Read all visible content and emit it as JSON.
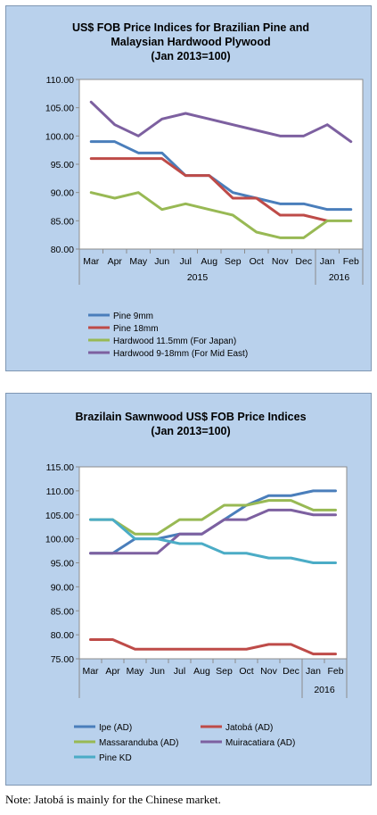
{
  "chart_data": [
    {
      "type": "line",
      "title_lines": [
        "US$ FOB Price Indices for Brazilian Pine and",
        "Malaysian Hardwood Plywood",
        "(Jan 2013=100)"
      ],
      "categories": [
        "Mar",
        "Apr",
        "May",
        "Jun",
        "Jul",
        "Aug",
        "Sep",
        "Oct",
        "Nov",
        "Dec",
        "Jan",
        "Feb"
      ],
      "year_labels": [
        "2015",
        "2016"
      ],
      "ylim": [
        80,
        110
      ],
      "yticks": [
        "110.00",
        "105.00",
        "100.00",
        "95.00",
        "90.00",
        "85.00",
        "80.00"
      ],
      "grid": false,
      "legend_position": "bottom",
      "series": [
        {
          "name": "Pine 9mm",
          "color": "#4a7ebb",
          "values": [
            99,
            99,
            97,
            97,
            93,
            93,
            90,
            89,
            88,
            88,
            87,
            87
          ]
        },
        {
          "name": "Pine 18mm",
          "color": "#be4b48",
          "values": [
            96,
            96,
            96,
            96,
            93,
            93,
            89,
            89,
            86,
            86,
            85,
            null
          ]
        },
        {
          "name": "Hardwood 11.5mm (For Japan)",
          "color": "#98b954",
          "values": [
            90,
            89,
            90,
            87,
            88,
            87,
            86,
            83,
            82,
            82,
            85,
            85
          ]
        },
        {
          "name": "Hardwood 9-18mm (For Mid East)",
          "color": "#7d60a0",
          "values": [
            106,
            102,
            100,
            103,
            104,
            103,
            102,
            101,
            100,
            100,
            102,
            99
          ]
        }
      ]
    },
    {
      "type": "line",
      "title_lines": [
        "Brazilain Sawnwood US$ FOB Price Indices",
        "(Jan 2013=100)"
      ],
      "categories": [
        "Mar",
        "Apr",
        "May",
        "Jun",
        "Jul",
        "Aug",
        "Sep",
        "Oct",
        "Nov",
        "Dec",
        "Jan",
        "Feb"
      ],
      "year_labels": [
        "2016"
      ],
      "ylim": [
        75,
        115
      ],
      "yticks": [
        "115.00",
        "110.00",
        "105.00",
        "100.00",
        "95.00",
        "90.00",
        "85.00",
        "80.00",
        "75.00"
      ],
      "grid": false,
      "legend_position": "bottom",
      "series": [
        {
          "name": "Ipe (AD)",
          "color": "#4a7ebb",
          "values": [
            97,
            97,
            100,
            100,
            101,
            101,
            104,
            107,
            109,
            109,
            110,
            110
          ]
        },
        {
          "name": "Jatobá (AD)",
          "color": "#be4b48",
          "values": [
            79,
            79,
            77,
            77,
            77,
            77,
            77,
            77,
            78,
            78,
            76,
            76
          ]
        },
        {
          "name": "Massaranduba (AD)",
          "color": "#98b954",
          "values": [
            104,
            104,
            101,
            101,
            104,
            104,
            107,
            107,
            108,
            108,
            106,
            106
          ]
        },
        {
          "name": "Muiracatiara (AD)",
          "color": "#7d60a0",
          "values": [
            97,
            97,
            97,
            97,
            101,
            101,
            104,
            104,
            106,
            106,
            105,
            105
          ]
        },
        {
          "name": "Pine KD",
          "color": "#4bacc6",
          "values": [
            104,
            104,
            100,
            100,
            99,
            99,
            97,
            97,
            96,
            96,
            95,
            95
          ]
        }
      ]
    }
  ],
  "note": "Note: Jatobá is mainly for the Chinese market."
}
